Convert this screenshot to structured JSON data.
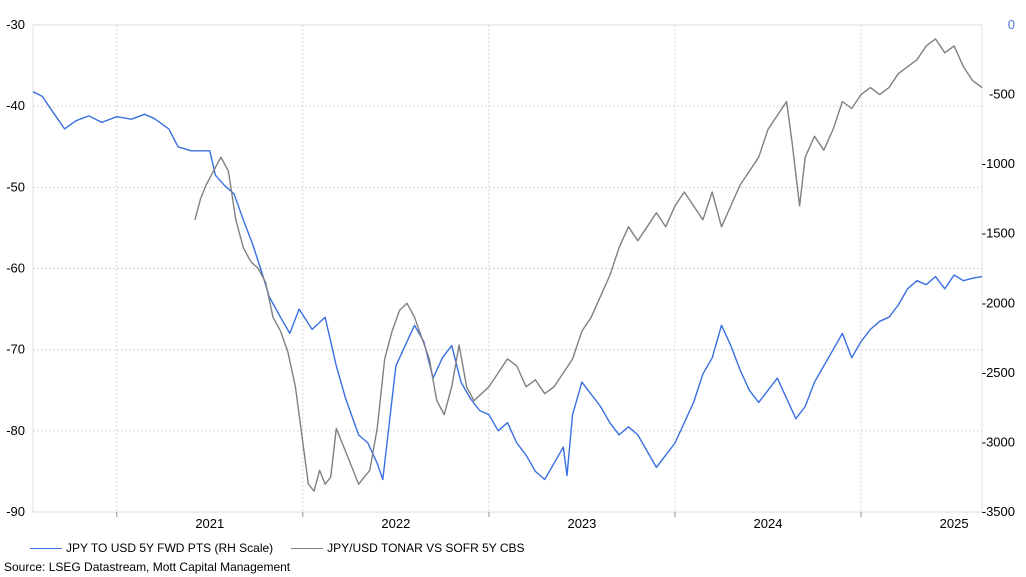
{
  "chart_data": {
    "type": "line",
    "y_left": {
      "ylim": [
        -90,
        -30
      ],
      "ticks": [
        -30,
        -40,
        -50,
        -60,
        -70,
        -80,
        -90
      ]
    },
    "y_right": {
      "ylim": [
        -3500,
        0
      ],
      "ticks": [
        0,
        -500,
        -1000,
        -1500,
        -2000,
        -2500,
        -3000,
        -3500
      ]
    },
    "x_ticks": [
      "2021",
      "2022",
      "2023",
      "2024",
      "2025"
    ],
    "x_range": [
      2020.55,
      2025.65
    ],
    "legend_placement": "bottom-left",
    "grid": true,
    "series": [
      {
        "name": "JPY TO USD 5Y FWD PTS (RH Scale)",
        "axis": "left",
        "color": "#3a6fe0",
        "points": [
          [
            2020.55,
            -38.2
          ],
          [
            2020.6,
            -38.8
          ],
          [
            2020.65,
            -40.5
          ],
          [
            2020.72,
            -42.8
          ],
          [
            2020.78,
            -41.8
          ],
          [
            2020.85,
            -41.2
          ],
          [
            2020.92,
            -42.0
          ],
          [
            2021.0,
            -41.3
          ],
          [
            2021.08,
            -41.6
          ],
          [
            2021.15,
            -41.0
          ],
          [
            2021.2,
            -41.5
          ],
          [
            2021.28,
            -42.8
          ],
          [
            2021.33,
            -45.0
          ],
          [
            2021.4,
            -45.5
          ],
          [
            2021.5,
            -45.5
          ],
          [
            2021.53,
            -48.5
          ],
          [
            2021.58,
            -49.8
          ],
          [
            2021.63,
            -50.8
          ],
          [
            2021.68,
            -54.0
          ],
          [
            2021.73,
            -57.0
          ],
          [
            2021.78,
            -60.5
          ],
          [
            2021.82,
            -63.5
          ],
          [
            2021.88,
            -66.0
          ],
          [
            2021.93,
            -68.0
          ],
          [
            2021.98,
            -65.0
          ],
          [
            2022.05,
            -67.5
          ],
          [
            2022.12,
            -66.0
          ],
          [
            2022.18,
            -72.0
          ],
          [
            2022.23,
            -76.0
          ],
          [
            2022.3,
            -80.5
          ],
          [
            2022.35,
            -81.5
          ],
          [
            2022.4,
            -84.0
          ],
          [
            2022.43,
            -86.0
          ],
          [
            2022.46,
            -80.0
          ],
          [
            2022.5,
            -72.0
          ],
          [
            2022.55,
            -69.5
          ],
          [
            2022.6,
            -67.0
          ],
          [
            2022.65,
            -69.0
          ],
          [
            2022.7,
            -73.5
          ],
          [
            2022.75,
            -71.0
          ],
          [
            2022.8,
            -69.5
          ],
          [
            2022.85,
            -74.0
          ],
          [
            2022.9,
            -76.0
          ],
          [
            2022.95,
            -77.5
          ],
          [
            2023.0,
            -78.0
          ],
          [
            2023.05,
            -80.0
          ],
          [
            2023.1,
            -79.0
          ],
          [
            2023.15,
            -81.5
          ],
          [
            2023.2,
            -83.0
          ],
          [
            2023.25,
            -85.0
          ],
          [
            2023.3,
            -86.0
          ],
          [
            2023.35,
            -84.0
          ],
          [
            2023.4,
            -82.0
          ],
          [
            2023.42,
            -85.5
          ],
          [
            2023.45,
            -78.0
          ],
          [
            2023.5,
            -74.0
          ],
          [
            2023.55,
            -75.5
          ],
          [
            2023.6,
            -77.0
          ],
          [
            2023.65,
            -79.0
          ],
          [
            2023.7,
            -80.5
          ],
          [
            2023.75,
            -79.5
          ],
          [
            2023.8,
            -80.5
          ],
          [
            2023.85,
            -82.5
          ],
          [
            2023.9,
            -84.5
          ],
          [
            2023.95,
            -83.0
          ],
          [
            2024.0,
            -81.5
          ],
          [
            2024.05,
            -79.0
          ],
          [
            2024.1,
            -76.5
          ],
          [
            2024.15,
            -73.0
          ],
          [
            2024.2,
            -71.0
          ],
          [
            2024.25,
            -67.0
          ],
          [
            2024.3,
            -69.5
          ],
          [
            2024.35,
            -72.5
          ],
          [
            2024.4,
            -75.0
          ],
          [
            2024.45,
            -76.5
          ],
          [
            2024.5,
            -75.0
          ],
          [
            2024.55,
            -73.5
          ],
          [
            2024.6,
            -76.0
          ],
          [
            2024.65,
            -78.5
          ],
          [
            2024.7,
            -77.0
          ],
          [
            2024.75,
            -74.0
          ],
          [
            2024.8,
            -72.0
          ],
          [
            2024.85,
            -70.0
          ],
          [
            2024.9,
            -68.0
          ],
          [
            2024.95,
            -71.0
          ],
          [
            2025.0,
            -69.0
          ],
          [
            2025.05,
            -67.5
          ],
          [
            2025.1,
            -66.5
          ],
          [
            2025.15,
            -66.0
          ],
          [
            2025.2,
            -64.5
          ],
          [
            2025.25,
            -62.5
          ],
          [
            2025.3,
            -61.5
          ],
          [
            2025.35,
            -62.0
          ],
          [
            2025.4,
            -61.0
          ],
          [
            2025.45,
            -62.5
          ],
          [
            2025.5,
            -60.8
          ],
          [
            2025.55,
            -61.5
          ],
          [
            2025.6,
            -61.2
          ],
          [
            2025.65,
            -61.0
          ]
        ]
      },
      {
        "name": "JPY/USD TONAR VS SOFR 5Y CBS",
        "axis": "right",
        "color": "#808080",
        "points": [
          [
            2021.42,
            -1400
          ],
          [
            2021.45,
            -1250
          ],
          [
            2021.48,
            -1150
          ],
          [
            2021.52,
            -1050
          ],
          [
            2021.56,
            -950
          ],
          [
            2021.6,
            -1050
          ],
          [
            2021.64,
            -1400
          ],
          [
            2021.68,
            -1600
          ],
          [
            2021.72,
            -1700
          ],
          [
            2021.76,
            -1750
          ],
          [
            2021.8,
            -1850
          ],
          [
            2021.84,
            -2100
          ],
          [
            2021.88,
            -2200
          ],
          [
            2021.92,
            -2350
          ],
          [
            2021.96,
            -2600
          ],
          [
            2022.0,
            -3000
          ],
          [
            2022.03,
            -3300
          ],
          [
            2022.06,
            -3350
          ],
          [
            2022.09,
            -3200
          ],
          [
            2022.12,
            -3300
          ],
          [
            2022.15,
            -3250
          ],
          [
            2022.18,
            -2900
          ],
          [
            2022.21,
            -3000
          ],
          [
            2022.24,
            -3100
          ],
          [
            2022.27,
            -3200
          ],
          [
            2022.3,
            -3300
          ],
          [
            2022.33,
            -3250
          ],
          [
            2022.36,
            -3200
          ],
          [
            2022.4,
            -2900
          ],
          [
            2022.44,
            -2400
          ],
          [
            2022.48,
            -2200
          ],
          [
            2022.52,
            -2050
          ],
          [
            2022.56,
            -2000
          ],
          [
            2022.6,
            -2100
          ],
          [
            2022.64,
            -2250
          ],
          [
            2022.68,
            -2400
          ],
          [
            2022.72,
            -2700
          ],
          [
            2022.76,
            -2800
          ],
          [
            2022.8,
            -2600
          ],
          [
            2022.84,
            -2300
          ],
          [
            2022.88,
            -2600
          ],
          [
            2022.92,
            -2700
          ],
          [
            2022.96,
            -2650
          ],
          [
            2023.0,
            -2600
          ],
          [
            2023.05,
            -2500
          ],
          [
            2023.1,
            -2400
          ],
          [
            2023.15,
            -2450
          ],
          [
            2023.2,
            -2600
          ],
          [
            2023.25,
            -2550
          ],
          [
            2023.3,
            -2650
          ],
          [
            2023.35,
            -2600
          ],
          [
            2023.4,
            -2500
          ],
          [
            2023.45,
            -2400
          ],
          [
            2023.5,
            -2200
          ],
          [
            2023.55,
            -2100
          ],
          [
            2023.6,
            -1950
          ],
          [
            2023.65,
            -1800
          ],
          [
            2023.7,
            -1600
          ],
          [
            2023.75,
            -1450
          ],
          [
            2023.8,
            -1550
          ],
          [
            2023.85,
            -1450
          ],
          [
            2023.9,
            -1350
          ],
          [
            2023.95,
            -1450
          ],
          [
            2024.0,
            -1300
          ],
          [
            2024.05,
            -1200
          ],
          [
            2024.1,
            -1300
          ],
          [
            2024.15,
            -1400
          ],
          [
            2024.2,
            -1200
          ],
          [
            2024.25,
            -1450
          ],
          [
            2024.3,
            -1300
          ],
          [
            2024.35,
            -1150
          ],
          [
            2024.4,
            -1050
          ],
          [
            2024.45,
            -950
          ],
          [
            2024.5,
            -750
          ],
          [
            2024.55,
            -650
          ],
          [
            2024.6,
            -550
          ],
          [
            2024.63,
            -850
          ],
          [
            2024.67,
            -1300
          ],
          [
            2024.7,
            -950
          ],
          [
            2024.75,
            -800
          ],
          [
            2024.8,
            -900
          ],
          [
            2024.85,
            -750
          ],
          [
            2024.9,
            -550
          ],
          [
            2024.95,
            -600
          ],
          [
            2025.0,
            -500
          ],
          [
            2025.05,
            -450
          ],
          [
            2025.1,
            -500
          ],
          [
            2025.15,
            -450
          ],
          [
            2025.2,
            -350
          ],
          [
            2025.25,
            -300
          ],
          [
            2025.3,
            -250
          ],
          [
            2025.35,
            -150
          ],
          [
            2025.4,
            -100
          ],
          [
            2025.45,
            -200
          ],
          [
            2025.5,
            -150
          ],
          [
            2025.55,
            -300
          ],
          [
            2025.6,
            -400
          ],
          [
            2025.65,
            -450
          ]
        ]
      }
    ]
  },
  "legend": [
    {
      "label": "JPY TO USD 5Y FWD PTS (RH Scale)",
      "color": "#3a6fe0"
    },
    {
      "label": "JPY/USD TONAR VS SOFR 5Y CBS",
      "color": "#808080"
    }
  ],
  "source": "Source: LSEG Datastream, Mott Capital Management"
}
